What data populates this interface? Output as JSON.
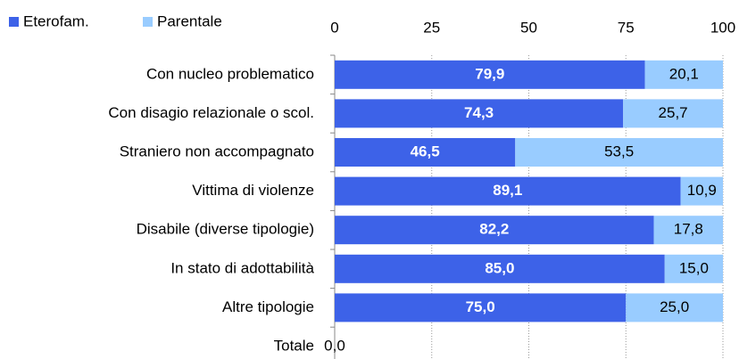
{
  "chart_data": {
    "type": "stacked_barh",
    "categories": [
      "Con nucleo problematico",
      "Con disagio relazionale o scol.",
      "Straniero non accompagnato",
      "Vittima di violenze",
      "Disabile (diverse tipologie)",
      "In stato di adottabilità",
      "Altre tipologie",
      "Totale"
    ],
    "series": [
      {
        "name": "Eterofam.",
        "color": "#3d62e8",
        "values": [
          79.9,
          74.3,
          46.5,
          89.1,
          82.2,
          85.0,
          75.0,
          0
        ],
        "value_labels": [
          "79,9",
          "74,3",
          "46,5",
          "89,1",
          "82,2",
          "85,0",
          "75,0",
          "0,0"
        ]
      },
      {
        "name": "Parentale",
        "color": "#99ccff",
        "values": [
          20.1,
          25.7,
          53.5,
          10.9,
          17.8,
          15.0,
          25.0,
          null
        ],
        "value_labels": [
          "20,1",
          "25,7",
          "53,5",
          "10,9",
          "17,8",
          "15,0",
          "25,0",
          null
        ]
      }
    ],
    "xlim": [
      0,
      100
    ],
    "xticks": [
      0,
      25,
      50,
      75,
      100
    ],
    "grid": true
  }
}
